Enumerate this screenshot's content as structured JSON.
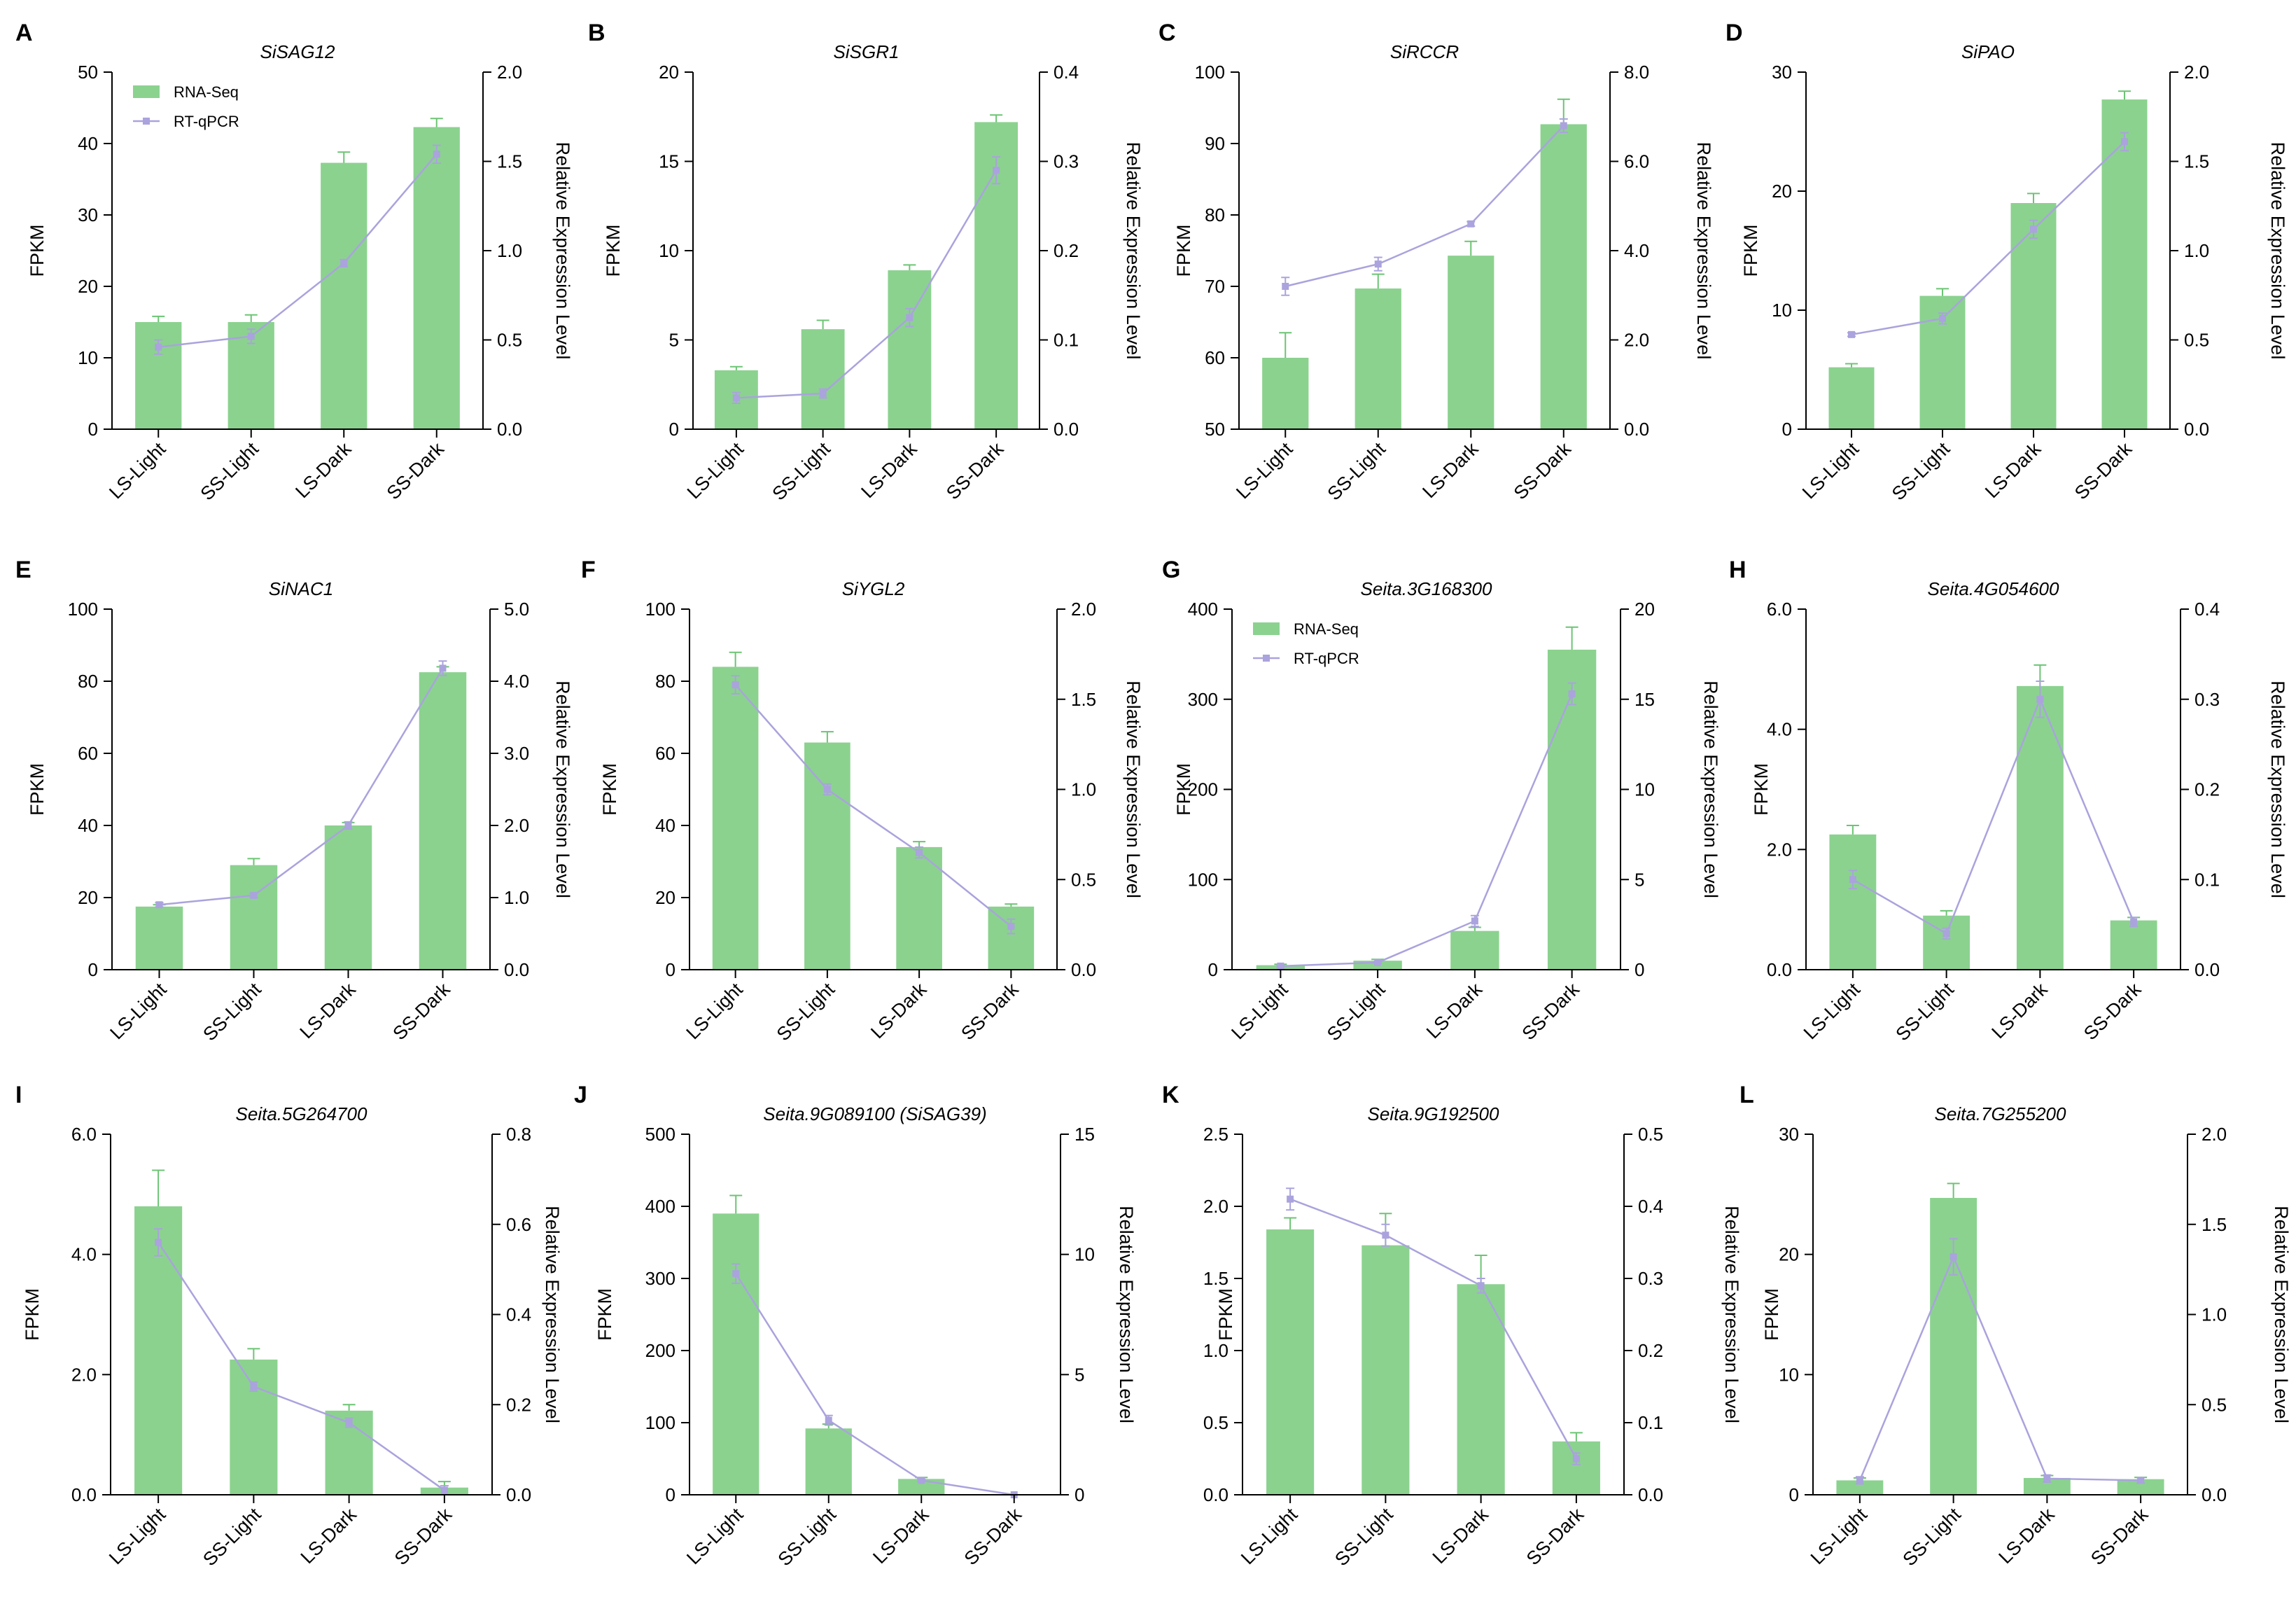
{
  "colors": {
    "bar": "#8bd28f",
    "bar_error": "#6cc474",
    "line": "#aaa3dd",
    "axis": "#000000"
  },
  "legend_labels": {
    "bar": "RNA-Seq",
    "line": "RT-qPCR"
  },
  "chart_data": [
    {
      "type": "bar",
      "panel": "A",
      "title": "SiSAG12",
      "categories": [
        "LS-Light",
        "SS-Light",
        "LS-Dark",
        "SS-Dark"
      ],
      "ylabel": "FPKM",
      "y2label": "Relative Expression Level",
      "ylim": [
        0,
        50
      ],
      "yticks": [
        0,
        10,
        20,
        30,
        40,
        50
      ],
      "ytick_labels": [
        "0",
        "10",
        "20",
        "30",
        "40",
        "50"
      ],
      "y2lim": [
        0,
        2
      ],
      "y2ticks": [
        0,
        0.5,
        1,
        1.5,
        2
      ],
      "y2tick_labels": [
        "0.0",
        "0.5",
        "1.0",
        "1.5",
        "2.0"
      ],
      "legend": true,
      "series": [
        {
          "name": "RNA-Seq",
          "kind": "bar",
          "values": [
            15,
            15,
            37.3,
            42.3
          ],
          "errors": [
            0.8,
            1,
            1.5,
            1.2
          ]
        },
        {
          "name": "RT-qPCR",
          "kind": "line",
          "values": [
            0.46,
            0.52,
            0.93,
            1.54
          ],
          "errors": [
            0.04,
            0.04,
            0.02,
            0.05
          ]
        }
      ]
    },
    {
      "type": "bar",
      "panel": "B",
      "title": "SiSGR1",
      "categories": [
        "LS-Light",
        "SS-Light",
        "LS-Dark",
        "SS-Dark"
      ],
      "ylabel": "FPKM",
      "y2label": "Relative Expression Level",
      "ylim": [
        0,
        20
      ],
      "yticks": [
        0,
        5,
        10,
        15,
        20
      ],
      "ytick_labels": [
        "0",
        "5",
        "10",
        "15",
        "20"
      ],
      "y2lim": [
        0,
        0.4
      ],
      "y2ticks": [
        0,
        0.1,
        0.2,
        0.3,
        0.4
      ],
      "y2tick_labels": [
        "0.0",
        "0.1",
        "0.2",
        "0.3",
        "0.4"
      ],
      "legend": false,
      "series": [
        {
          "name": "RNA-Seq",
          "kind": "bar",
          "values": [
            3.3,
            5.6,
            8.9,
            17.2
          ],
          "errors": [
            0.2,
            0.5,
            0.3,
            0.4
          ]
        },
        {
          "name": "RT-qPCR",
          "kind": "line",
          "values": [
            0.035,
            0.04,
            0.125,
            0.29
          ],
          "errors": [
            0.006,
            0.005,
            0.01,
            0.015
          ]
        }
      ]
    },
    {
      "type": "bar",
      "panel": "C",
      "title": "SiRCCR",
      "categories": [
        "LS-Light",
        "SS-Light",
        "LS-Dark",
        "SS-Dark"
      ],
      "ylabel": "FPKM",
      "y2label": "Relative Expression Level",
      "ylim": [
        50,
        100
      ],
      "yticks": [
        50,
        60,
        70,
        80,
        90,
        100
      ],
      "ytick_labels": [
        "50",
        "60",
        "70",
        "80",
        "90",
        "100"
      ],
      "y2lim": [
        0,
        8
      ],
      "y2ticks": [
        0,
        2,
        4,
        6,
        8
      ],
      "y2tick_labels": [
        "0.0",
        "2.0",
        "4.0",
        "6.0",
        "8.0"
      ],
      "legend": false,
      "series": [
        {
          "name": "RNA-Seq",
          "kind": "bar",
          "values": [
            60,
            69.7,
            74.3,
            92.7
          ],
          "errors": [
            3.5,
            2,
            2,
            3.5
          ]
        },
        {
          "name": "RT-qPCR",
          "kind": "line",
          "values": [
            3.2,
            3.7,
            4.6,
            6.8
          ],
          "errors": [
            0.2,
            0.15,
            0.05,
            0.15
          ]
        }
      ]
    },
    {
      "type": "bar",
      "panel": "D",
      "title": "SiPAO",
      "categories": [
        "LS-Light",
        "SS-Light",
        "LS-Dark",
        "SS-Dark"
      ],
      "ylabel": "FPKM",
      "y2label": "Relative Expression Level",
      "ylim": [
        0,
        30
      ],
      "yticks": [
        0,
        10,
        20,
        30
      ],
      "ytick_labels": [
        "0",
        "10",
        "20",
        "30"
      ],
      "y2lim": [
        0,
        2
      ],
      "y2ticks": [
        0,
        0.5,
        1,
        1.5,
        2
      ],
      "y2tick_labels": [
        "0.0",
        "0.5",
        "1.0",
        "1.5",
        "2.0"
      ],
      "legend": false,
      "series": [
        {
          "name": "RNA-Seq",
          "kind": "bar",
          "values": [
            5.2,
            11.2,
            19,
            27.7
          ],
          "errors": [
            0.3,
            0.6,
            0.8,
            0.7
          ]
        },
        {
          "name": "RT-qPCR",
          "kind": "line",
          "values": [
            0.53,
            0.62,
            1.12,
            1.61
          ],
          "errors": [
            0.01,
            0.03,
            0.05,
            0.05
          ]
        }
      ]
    },
    {
      "type": "bar",
      "panel": "E",
      "title": "SiNAC1",
      "categories": [
        "LS-Light",
        "SS-Light",
        "LS-Dark",
        "SS-Dark"
      ],
      "ylabel": "FPKM",
      "y2label": "Relative Expression Level",
      "ylim": [
        0,
        100
      ],
      "yticks": [
        0,
        20,
        40,
        60,
        80,
        100
      ],
      "ytick_labels": [
        "0",
        "20",
        "40",
        "60",
        "80",
        "100"
      ],
      "y2lim": [
        0,
        5
      ],
      "y2ticks": [
        0,
        1,
        2,
        3,
        4,
        5
      ],
      "y2tick_labels": [
        "0.0",
        "1.0",
        "2.0",
        "3.0",
        "4.0",
        "5.0"
      ],
      "legend": false,
      "series": [
        {
          "name": "RNA-Seq",
          "kind": "bar",
          "values": [
            17.5,
            29,
            40,
            82.5
          ],
          "errors": [
            0.5,
            1.8,
            0.8,
            1.5
          ]
        },
        {
          "name": "RT-qPCR",
          "kind": "line",
          "values": [
            0.9,
            1.03,
            2.0,
            4.18
          ],
          "errors": [
            0.03,
            0.03,
            0.05,
            0.1
          ]
        }
      ]
    },
    {
      "type": "bar",
      "panel": "F",
      "title": "SiYGL2",
      "categories": [
        "LS-Light",
        "SS-Light",
        "LS-Dark",
        "SS-Dark"
      ],
      "ylabel": "FPKM",
      "y2label": "Relative Expression Level",
      "ylim": [
        0,
        100
      ],
      "yticks": [
        0,
        20,
        40,
        60,
        80,
        100
      ],
      "ytick_labels": [
        "0",
        "20",
        "40",
        "60",
        "80",
        "100"
      ],
      "y2lim": [
        0,
        2
      ],
      "y2ticks": [
        0,
        0.5,
        1,
        1.5,
        2
      ],
      "y2tick_labels": [
        "0.0",
        "0.5",
        "1.0",
        "1.5",
        "2.0"
      ],
      "legend": false,
      "series": [
        {
          "name": "RNA-Seq",
          "kind": "bar",
          "values": [
            84,
            63,
            34,
            17.5
          ],
          "errors": [
            4,
            3,
            1.5,
            0.7
          ]
        },
        {
          "name": "RT-qPCR",
          "kind": "line",
          "values": [
            1.58,
            1.0,
            0.65,
            0.24
          ],
          "errors": [
            0.05,
            0.03,
            0.03,
            0.04
          ]
        }
      ]
    },
    {
      "type": "bar",
      "panel": "G",
      "title": "Seita.3G168300",
      "categories": [
        "LS-Light",
        "SS-Light",
        "LS-Dark",
        "SS-Dark"
      ],
      "ylabel": "FPKM",
      "y2label": "Relative Expression Level",
      "ylim": [
        0,
        400
      ],
      "yticks": [
        0,
        100,
        200,
        300,
        400
      ],
      "ytick_labels": [
        "0",
        "100",
        "200",
        "300",
        "400"
      ],
      "y2lim": [
        0,
        20
      ],
      "y2ticks": [
        0,
        5,
        10,
        15,
        20
      ],
      "y2tick_labels": [
        "0",
        "5",
        "10",
        "15",
        "20"
      ],
      "legend": true,
      "series": [
        {
          "name": "RNA-Seq",
          "kind": "bar",
          "values": [
            5,
            10,
            43,
            355
          ],
          "errors": [
            1,
            1.5,
            4,
            25
          ]
        },
        {
          "name": "RT-qPCR",
          "kind": "line",
          "values": [
            0.2,
            0.4,
            2.7,
            15.3
          ],
          "errors": [
            0.05,
            0.05,
            0.3,
            0.6
          ]
        }
      ]
    },
    {
      "type": "bar",
      "panel": "H",
      "title": "Seita.4G054600",
      "categories": [
        "LS-Light",
        "SS-Light",
        "LS-Dark",
        "SS-Dark"
      ],
      "ylabel": "FPKM",
      "y2label": "Relative Expression Level",
      "ylim": [
        0,
        6
      ],
      "yticks": [
        0,
        2,
        4,
        6
      ],
      "ytick_labels": [
        "0.0",
        "2.0",
        "4.0",
        "6.0"
      ],
      "y2lim": [
        0,
        0.4
      ],
      "y2ticks": [
        0,
        0.1,
        0.2,
        0.3,
        0.4
      ],
      "y2tick_labels": [
        "0.0",
        "0.1",
        "0.2",
        "0.3",
        "0.4"
      ],
      "legend": false,
      "series": [
        {
          "name": "RNA-Seq",
          "kind": "bar",
          "values": [
            2.25,
            0.9,
            4.72,
            0.82
          ],
          "errors": [
            0.15,
            0.08,
            0.35,
            0.05
          ]
        },
        {
          "name": "RT-qPCR",
          "kind": "line",
          "values": [
            0.1,
            0.04,
            0.3,
            0.053
          ],
          "errors": [
            0.01,
            0.006,
            0.02,
            0.005
          ]
        }
      ]
    },
    {
      "type": "bar",
      "panel": "I",
      "title": "Seita.5G264700",
      "categories": [
        "LS-Light",
        "SS-Light",
        "LS-Dark",
        "SS-Dark"
      ],
      "ylabel": "FPKM",
      "y2label": "Relative Expression Level",
      "ylim": [
        0,
        6
      ],
      "yticks": [
        0,
        2,
        4,
        6
      ],
      "ytick_labels": [
        "0.0",
        "2.0",
        "4.0",
        "6.0"
      ],
      "y2lim": [
        0,
        0.8
      ],
      "y2ticks": [
        0,
        0.2,
        0.4,
        0.6,
        0.8
      ],
      "y2tick_labels": [
        "0.0",
        "0.2",
        "0.4",
        "0.6",
        "0.8"
      ],
      "legend": false,
      "series": [
        {
          "name": "RNA-Seq",
          "kind": "bar",
          "values": [
            4.8,
            2.25,
            1.4,
            0.12
          ],
          "errors": [
            0.6,
            0.18,
            0.1,
            0.1
          ]
        },
        {
          "name": "RT-qPCR",
          "kind": "line",
          "values": [
            0.56,
            0.24,
            0.16,
            0.01
          ],
          "errors": [
            0.03,
            0.01,
            0.01,
            0.01
          ]
        }
      ]
    },
    {
      "type": "bar",
      "panel": "J",
      "title": "Seita.9G089100 (SiSAG39)",
      "categories": [
        "LS-Light",
        "SS-Light",
        "LS-Dark",
        "SS-Dark"
      ],
      "ylabel": "FPKM",
      "y2label": "Relative Expression Level",
      "ylim": [
        0,
        500
      ],
      "yticks": [
        0,
        100,
        200,
        300,
        400,
        500
      ],
      "ytick_labels": [
        "0",
        "100",
        "200",
        "300",
        "400",
        "500"
      ],
      "y2lim": [
        0,
        15
      ],
      "y2ticks": [
        0,
        5,
        10,
        15
      ],
      "y2tick_labels": [
        "0",
        "5",
        "10",
        "15"
      ],
      "legend": false,
      "series": [
        {
          "name": "RNA-Seq",
          "kind": "bar",
          "values": [
            390,
            92,
            22,
            0
          ],
          "errors": [
            25,
            6,
            2,
            0
          ]
        },
        {
          "name": "RT-qPCR",
          "kind": "line",
          "values": [
            9.2,
            3.1,
            0.6,
            0
          ],
          "errors": [
            0.4,
            0.2,
            0.05,
            0
          ]
        }
      ]
    },
    {
      "type": "bar",
      "panel": "K",
      "title": "Seita.9G192500",
      "categories": [
        "LS-Light",
        "SS-Light",
        "LS-Dark",
        "SS-Dark"
      ],
      "ylabel": "FPKM",
      "y2label": "Relative Expression Level",
      "ylim": [
        0,
        2.5
      ],
      "yticks": [
        0,
        0.5,
        1,
        1.5,
        2,
        2.5
      ],
      "ytick_labels": [
        "0.0",
        "0.5",
        "1.0",
        "1.5",
        "2.0",
        "2.5"
      ],
      "y2lim": [
        0,
        0.5
      ],
      "y2ticks": [
        0,
        0.1,
        0.2,
        0.3,
        0.4,
        0.5
      ],
      "y2tick_labels": [
        "0.0",
        "0.1",
        "0.2",
        "0.3",
        "0.4",
        "0.5"
      ],
      "legend": false,
      "series": [
        {
          "name": "RNA-Seq",
          "kind": "bar",
          "values": [
            1.84,
            1.73,
            1.46,
            0.37
          ],
          "errors": [
            0.08,
            0.22,
            0.2,
            0.06
          ]
        },
        {
          "name": "RT-qPCR",
          "kind": "line",
          "values": [
            0.41,
            0.36,
            0.29,
            0.05
          ],
          "errors": [
            0.015,
            0.015,
            0.01,
            0.008
          ]
        }
      ]
    },
    {
      "type": "bar",
      "panel": "L",
      "title": "Seita.7G255200",
      "categories": [
        "LS-Light",
        "SS-Light",
        "LS-Dark",
        "SS-Dark"
      ],
      "ylabel": "FPKM",
      "y2label": "Relative Expression Level",
      "ylim": [
        0,
        30
      ],
      "yticks": [
        0,
        10,
        20,
        30
      ],
      "ytick_labels": [
        "0",
        "10",
        "20",
        "30"
      ],
      "y2lim": [
        0,
        2
      ],
      "y2ticks": [
        0,
        0.5,
        1,
        1.5,
        2
      ],
      "y2tick_labels": [
        "0.0",
        "0.5",
        "1.0",
        "1.5",
        "2.0"
      ],
      "legend": false,
      "series": [
        {
          "name": "RNA-Seq",
          "kind": "bar",
          "values": [
            1.2,
            24.7,
            1.4,
            1.3
          ],
          "errors": [
            0.2,
            1.2,
            0.2,
            0.15
          ]
        },
        {
          "name": "RT-qPCR",
          "kind": "line",
          "values": [
            0.08,
            1.32,
            0.09,
            0.08
          ],
          "errors": [
            0.02,
            0.1,
            0.02,
            0.015
          ]
        }
      ]
    }
  ]
}
